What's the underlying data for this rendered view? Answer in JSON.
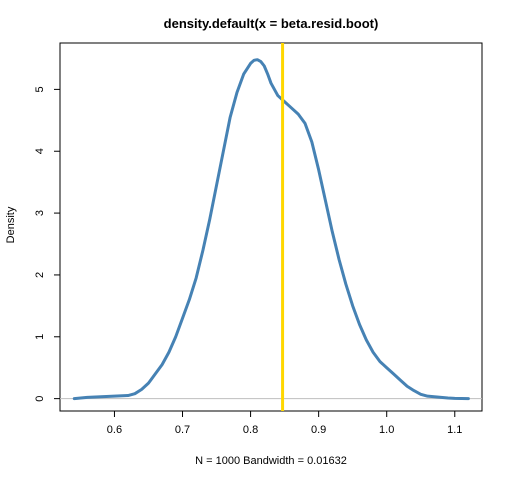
{
  "chart_data": {
    "type": "line",
    "title": "density.default(x = beta.resid.boot)",
    "xlabel": "N = 1000   Bandwidth = 0.01632",
    "ylabel": "Density",
    "xlim": [
      0.52,
      1.14
    ],
    "ylim": [
      -0.2,
      5.75
    ],
    "x_ticks": [
      0.6,
      0.7,
      0.8,
      0.9,
      1.0,
      1.1
    ],
    "x_tick_labels": [
      "0.6",
      "0.7",
      "0.8",
      "0.9",
      "1.0",
      "1.1"
    ],
    "y_ticks": [
      0,
      1,
      2,
      3,
      4,
      5
    ],
    "y_tick_labels": [
      "0",
      "1",
      "2",
      "3",
      "4",
      "5"
    ],
    "baseline_y": 0,
    "vertical_line_x": 0.847,
    "colors": {
      "density": "#4682b4",
      "vline": "#ffd700",
      "baseline": "#bebebe"
    },
    "series": [
      {
        "x": [
          0.541,
          0.56,
          0.58,
          0.6,
          0.62,
          0.63,
          0.64,
          0.65,
          0.66,
          0.67,
          0.68,
          0.69,
          0.7,
          0.71,
          0.72,
          0.73,
          0.74,
          0.75,
          0.76,
          0.77,
          0.78,
          0.79,
          0.8,
          0.805,
          0.81,
          0.815,
          0.82,
          0.825,
          0.83,
          0.84,
          0.85,
          0.86,
          0.87,
          0.88,
          0.89,
          0.9,
          0.91,
          0.92,
          0.93,
          0.94,
          0.95,
          0.96,
          0.97,
          0.98,
          0.99,
          1.0,
          1.01,
          1.02,
          1.03,
          1.04,
          1.05,
          1.06,
          1.07,
          1.08,
          1.09,
          1.1,
          1.12
        ],
        "y": [
          0.0,
          0.02,
          0.03,
          0.04,
          0.05,
          0.08,
          0.15,
          0.25,
          0.4,
          0.55,
          0.75,
          1.0,
          1.3,
          1.6,
          1.95,
          2.4,
          2.9,
          3.45,
          4.0,
          4.55,
          4.95,
          5.25,
          5.42,
          5.47,
          5.48,
          5.45,
          5.38,
          5.25,
          5.1,
          4.9,
          4.8,
          4.7,
          4.6,
          4.45,
          4.15,
          3.7,
          3.2,
          2.7,
          2.25,
          1.85,
          1.5,
          1.2,
          0.95,
          0.75,
          0.6,
          0.5,
          0.4,
          0.3,
          0.2,
          0.13,
          0.07,
          0.04,
          0.03,
          0.02,
          0.01,
          0.005,
          0.0
        ]
      }
    ]
  }
}
